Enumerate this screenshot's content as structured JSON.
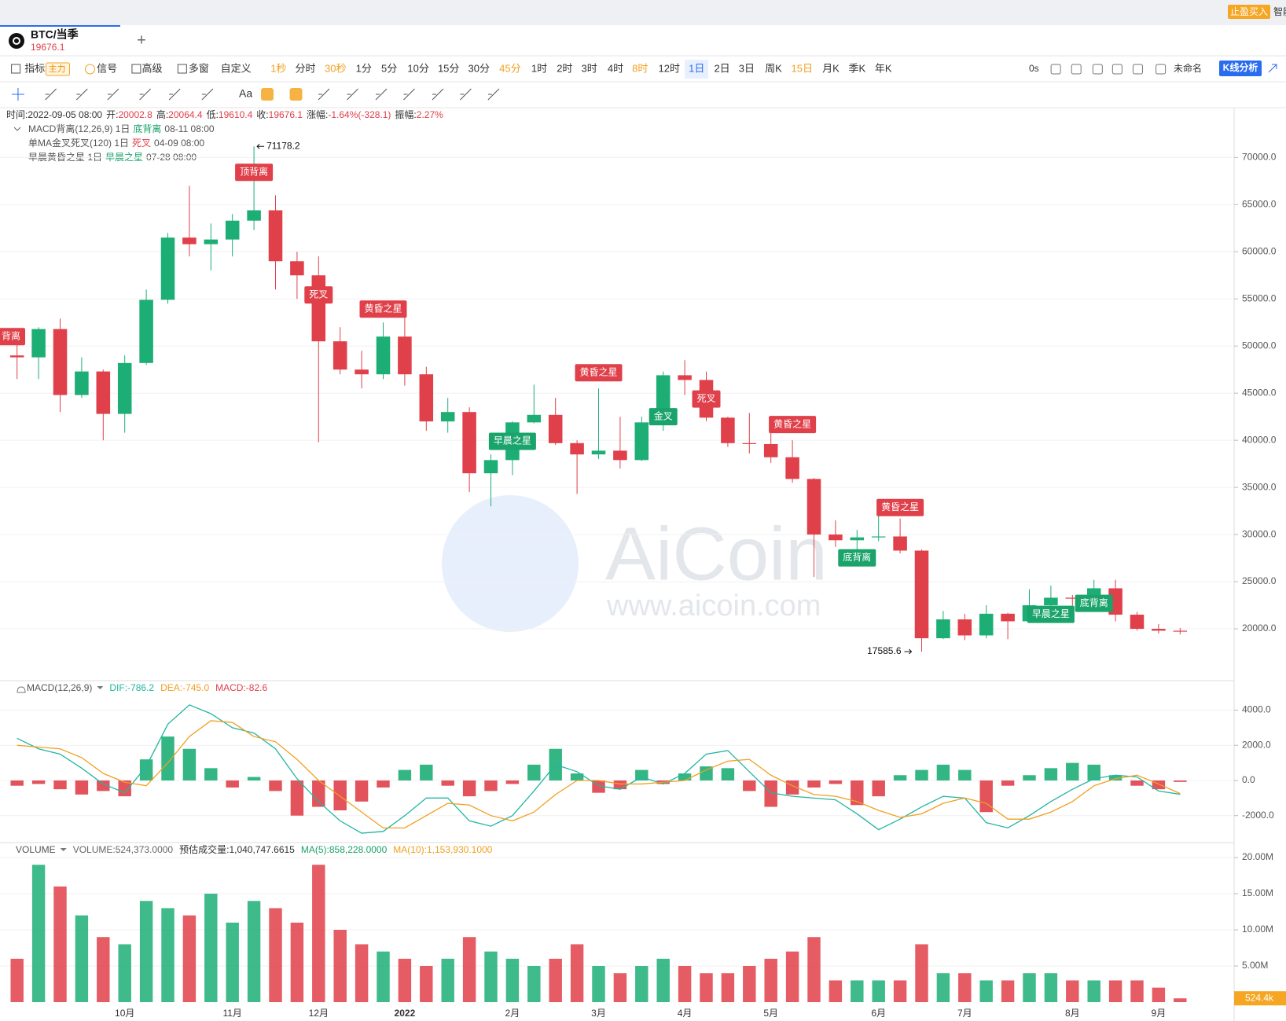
{
  "top_bar": {
    "buy_button": "止盈买入",
    "cut_text": "智能"
  },
  "tab": {
    "symbol": "BTC/当季",
    "price": "19676.1",
    "add": "+"
  },
  "toolbar": {
    "items": [
      "指标",
      "主力",
      "信号",
      "高级",
      "多窗",
      "自定义",
      "1秒",
      "分时",
      "30秒",
      "1分",
      "5分",
      "10分",
      "15分",
      "30分",
      "45分",
      "1时",
      "2时",
      "3时",
      "4时",
      "8时",
      "12时",
      "1日",
      "2日",
      "3日",
      "周K",
      "15日",
      "月K",
      "季K",
      "年K"
    ],
    "countdown": "0s",
    "layout_name": "未命名",
    "analysis": "K线分析"
  },
  "drawing_tools": {
    "text_tool": "Aa"
  },
  "info": [
    {
      "label": "时间:",
      "value": "2022-09-05 08:00"
    },
    {
      "label": "开:",
      "value": "20002.8"
    },
    {
      "label": "高:",
      "value": "20064.4"
    },
    {
      "label": "低:",
      "value": "19610.4"
    },
    {
      "label": "收:",
      "value": "19676.1"
    },
    {
      "label": "涨幅:",
      "value": "-1.64%(-328.1)"
    },
    {
      "label": "振幅:",
      "value": "2.27%"
    }
  ],
  "indicators": [
    {
      "name": "MACD背离(12,26,9) 1日",
      "signal": "底背离",
      "signal_color": "#1aa36b",
      "time": "08-11 08:00"
    },
    {
      "name": "单MA金叉死叉(120) 1日",
      "signal": "死叉",
      "signal_color": "#e0404a",
      "time": "04-09 08:00"
    },
    {
      "name": "早晨黄昏之星 1日",
      "signal": "早晨之星",
      "signal_color": "#1aa36b",
      "time": "07-28 08:00"
    }
  ],
  "watermark": {
    "brand": "AiCoin",
    "url": "www.aicoin.com"
  },
  "chart_data": [
    {
      "type": "candlestick",
      "categories": [
        null,
        null,
        null,
        null,
        null,
        "10月",
        null,
        null,
        null,
        null,
        "11月",
        null,
        null,
        null,
        "12月",
        null,
        null,
        null,
        "2022",
        null,
        null,
        null,
        null,
        "2月",
        null,
        null,
        null,
        "3月",
        null,
        null,
        null,
        "4月",
        null,
        null,
        null,
        "5月",
        null,
        null,
        null,
        null,
        "6月",
        null,
        null,
        null,
        "7月",
        null,
        null,
        null,
        null,
        "8月",
        null,
        null,
        null,
        "9月",
        null
      ],
      "open": [
        49000,
        48800,
        51800,
        44800,
        47300,
        42800,
        48200,
        54900,
        61500,
        60800,
        61300,
        63300,
        64400,
        59000,
        57500,
        50500,
        47500,
        47000,
        51000,
        47000,
        42000,
        43000,
        36500,
        37900,
        41900,
        42700,
        39700,
        38500,
        38900,
        37900,
        41900,
        46900,
        46400,
        42400,
        39700,
        39600,
        38200,
        35900,
        30000,
        29400,
        29700,
        29800,
        28300,
        19000,
        21000,
        19300,
        21600,
        20800,
        22500,
        23300,
        23200,
        24300,
        21500,
        20000,
        19800
      ],
      "high": [
        50500,
        52000,
        52900,
        48800,
        47500,
        49000,
        56000,
        62000,
        67000,
        63000,
        64000,
        71178.2,
        66000,
        60000,
        59500,
        52000,
        49500,
        52500,
        53000,
        47800,
        44500,
        43500,
        38500,
        42000,
        45900,
        44500,
        40000,
        45500,
        42500,
        42500,
        47300,
        48500,
        47300,
        42500,
        42900,
        40800,
        40000,
        36000,
        31500,
        30500,
        32000,
        31700,
        28400,
        21900,
        21600,
        22500,
        21700,
        24200,
        24600,
        23600,
        25200,
        25200,
        21800,
        20500,
        20100
      ],
      "low": [
        46500,
        46500,
        43000,
        44500,
        40000,
        40800,
        48000,
        54500,
        59500,
        58000,
        59500,
        62300,
        56000,
        55000,
        39800,
        47000,
        45500,
        46500,
        45800,
        41000,
        40800,
        34500,
        33000,
        36300,
        41800,
        39500,
        34300,
        38000,
        37000,
        37800,
        41000,
        44800,
        42000,
        39300,
        38600,
        37600,
        35500,
        25500,
        28700,
        28200,
        29300,
        28000,
        17585.6,
        18900,
        18800,
        19000,
        18900,
        20700,
        20700,
        22400,
        22700,
        20800,
        19800,
        19500,
        19400
      ],
      "close": [
        48800,
        51800,
        44800,
        47300,
        42800,
        48200,
        54900,
        61500,
        60800,
        61300,
        63300,
        64400,
        59000,
        57500,
        50500,
        47500,
        47000,
        51000,
        47000,
        42000,
        43000,
        36500,
        37900,
        41900,
        42700,
        39700,
        38500,
        38900,
        37900,
        41900,
        46900,
        46400,
        42400,
        39700,
        39600,
        38200,
        35900,
        30000,
        29400,
        29700,
        29800,
        28300,
        19000,
        21000,
        19300,
        21600,
        20800,
        22500,
        23300,
        23200,
        24300,
        21500,
        20000,
        19800,
        19700
      ],
      "up_color": "#1dae75",
      "down_color": "#e0404a",
      "ylim": [
        14500,
        75200
      ],
      "yticks": [
        {
          "value": 20000,
          "label": "20000.0"
        },
        {
          "value": 25000,
          "label": "25000.0"
        },
        {
          "value": 30000,
          "label": "30000.0"
        },
        {
          "value": 35000,
          "label": "35000.0"
        },
        {
          "value": 40000,
          "label": "40000.0"
        },
        {
          "value": 45000,
          "label": "45000.0"
        },
        {
          "value": 50000,
          "label": "50000.0"
        },
        {
          "value": 55000,
          "label": "55000.0"
        },
        {
          "value": 60000,
          "label": "60000.0"
        },
        {
          "value": 65000,
          "label": "65000.0"
        },
        {
          "value": 70000,
          "label": "70000.0"
        }
      ],
      "grid": true,
      "annotations": [
        "71178.2",
        "17585.6"
      ],
      "signals": [
        {
          "text": "背离",
          "color": "#e0404a"
        },
        {
          "text": "顶背离",
          "color": "#e0404a"
        },
        {
          "text": "死叉",
          "color": "#e0404a"
        },
        {
          "text": "黄昏之星",
          "color": "#e0404a"
        },
        {
          "text": "早晨之星",
          "color": "#1aa36b"
        },
        {
          "text": "黄昏之星",
          "color": "#e0404a"
        },
        {
          "text": "金叉",
          "color": "#1aa36b"
        },
        {
          "text": "死叉",
          "color": "#e0404a"
        },
        {
          "text": "黄昏之星",
          "color": "#e0404a"
        },
        {
          "text": "底背离",
          "color": "#1aa36b"
        },
        {
          "text": "黄昏之星",
          "color": "#e0404a"
        },
        {
          "text": "早晨之星",
          "color": "#1aa36b"
        },
        {
          "text": "底背离",
          "color": "#1aa36b"
        }
      ]
    },
    {
      "type": "macd",
      "title": "MACD(12,26,9)",
      "ylim": [
        -3400,
        5500
      ],
      "yticks": [
        {
          "value": -2000,
          "label": "-2000.0"
        },
        {
          "value": 0,
          "label": "0.0"
        },
        {
          "value": 2000,
          "label": "2000.0"
        },
        {
          "value": 4000,
          "label": "4000.0"
        }
      ],
      "up_color": "#1dae75",
      "down_color": "#e0404a",
      "series": [
        {
          "name": "DIF:-786.2",
          "color": "#22b5a2",
          "values": [
            2400,
            1800,
            1500,
            700,
            -200,
            -700,
            800,
            3200,
            4300,
            3800,
            3000,
            2700,
            1800,
            100,
            -1200,
            -2300,
            -3000,
            -2900,
            -2000,
            -1000,
            -1000,
            -2300,
            -2600,
            -2000,
            -600,
            900,
            500,
            -300,
            -500,
            200,
            -200,
            400,
            1500,
            1700,
            500,
            -700,
            -900,
            -1000,
            -1100,
            -1900,
            -2800,
            -2200,
            -1500,
            -900,
            -1000,
            -2400,
            -2700,
            -2000,
            -1200,
            -500,
            100,
            300,
            200,
            -600,
            -786.2
          ]
        },
        {
          "name": "DEA:-745.0",
          "color": "#f0a020",
          "values": [
            2000,
            1900,
            1800,
            1300,
            400,
            -100,
            -300,
            1000,
            2500,
            3400,
            3300,
            2500,
            2200,
            1200,
            0,
            -900,
            -1800,
            -2700,
            -2700,
            -2000,
            -1300,
            -1400,
            -2000,
            -2300,
            -1800,
            -800,
            0,
            0,
            -200,
            -200,
            -100,
            0,
            600,
            1100,
            1200,
            300,
            -300,
            -800,
            -900,
            -1200,
            -1700,
            -2100,
            -1900,
            -1300,
            -1000,
            -1300,
            -2200,
            -2200,
            -1800,
            -1200,
            -300,
            100,
            300,
            -200,
            -745.0
          ]
        },
        {
          "name": "MACD:-82.6",
          "color": "#e0404a",
          "values": [
            -300,
            -200,
            -500,
            -800,
            -600,
            -900,
            1200,
            2500,
            1800,
            700,
            -400,
            200,
            -600,
            -2000,
            -1500,
            -1700,
            -1200,
            -400,
            600,
            900,
            -300,
            -900,
            -600,
            -200,
            900,
            1800,
            400,
            -700,
            -500,
            600,
            -200,
            400,
            800,
            700,
            -600,
            -1500,
            -800,
            -400,
            -200,
            -1400,
            -900,
            300,
            600,
            900,
            600,
            -1800,
            -300,
            300,
            700,
            1000,
            900,
            300,
            -300,
            -500,
            -82.6
          ]
        }
      ]
    },
    {
      "type": "volume",
      "title": "VOLUME",
      "legend": [
        {
          "text": "VOLUME:524,373.0000",
          "color": "#666"
        },
        {
          "text": "预估成交量:1,040,747.6615",
          "color": "#333"
        },
        {
          "text": "MA(5):858,228.0000",
          "color": "#1aa36b"
        },
        {
          "text": "MA(10):1,153,930.1000",
          "color": "#f0a020"
        }
      ],
      "values": [
        6,
        19,
        16,
        12,
        9,
        8,
        14,
        13,
        12,
        15,
        11,
        14,
        13,
        11,
        19,
        10,
        8,
        7,
        6,
        5,
        6,
        9,
        7,
        6,
        5,
        6,
        8,
        5,
        4,
        5,
        6,
        5,
        4,
        4,
        5,
        6,
        7,
        9,
        3,
        3,
        3,
        3,
        8,
        4,
        4,
        3,
        3,
        4,
        4,
        3,
        3,
        3,
        3,
        2,
        0.5244
      ],
      "ylim": [
        0,
        21.2
      ],
      "yticks": [
        {
          "value": 5,
          "label": "5.00M"
        },
        {
          "value": 10,
          "label": "10.00M"
        },
        {
          "value": 15,
          "label": "15.00M"
        },
        {
          "value": 20,
          "label": "20.00M"
        }
      ],
      "last_label": "524.4k",
      "last_color": "#f5a623"
    }
  ]
}
